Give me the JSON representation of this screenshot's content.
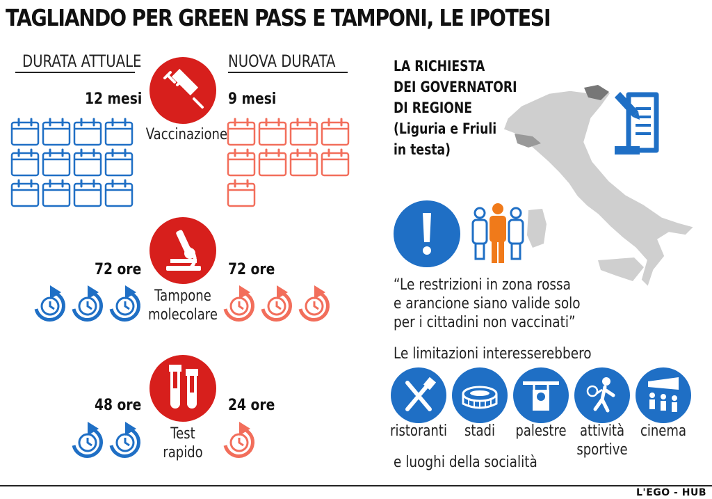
{
  "title": "TAGLIANDO PER GREEN PASS E TAMPONI, LE IPOTESI",
  "headers": {
    "current": "DURATA ATTUALE",
    "new": "NUOVA DURATA"
  },
  "vaccination": {
    "label": "Vaccinazione",
    "current": "12 mesi",
    "new": "9 mesi",
    "current_months": 12,
    "new_months": 9
  },
  "molecular": {
    "label_line1": "Tampone",
    "label_line2": "molecolare",
    "current": "72 ore",
    "new": "72 ore",
    "current_icons": 3,
    "new_icons": 3
  },
  "rapid": {
    "label_line1": "Test",
    "label_line2": "rapido",
    "current": "48 ore",
    "new": "24 ore",
    "current_icons": 2,
    "new_icons": 1
  },
  "request": {
    "line1": "LA RICHIESTA",
    "line2": "DEI GOVERNATORI",
    "line3": "DI REGIONE",
    "line4": "(Liguria e Friuli",
    "line5": "in testa)"
  },
  "quote": {
    "line1": "“Le restrizioni in zona rossa",
    "line2": "e arancione siano valide solo",
    "line3": "per i cittadini non vaccinati”"
  },
  "limitations": {
    "intro": "Le limitazioni interesserebbero",
    "items": [
      {
        "label": "ristoranti",
        "icon": "cutlery-icon"
      },
      {
        "label": "stadi",
        "icon": "stadium-icon"
      },
      {
        "label": "palestre",
        "icon": "weightlifting-icon"
      },
      {
        "label_line1": "attività",
        "label_line2": "sportive",
        "icon": "tennis-player-icon"
      },
      {
        "label": "cinema",
        "icon": "cinema-audience-icon"
      }
    ],
    "outro": "e luoghi della socialità"
  },
  "credit": "L'EGO - HUB",
  "colors": {
    "red": "#d71f1c",
    "blue": "#1f6fc5",
    "salmon": "#f26e5b",
    "orange": "#f07a1a",
    "map_gray": "#cfcfcf"
  }
}
